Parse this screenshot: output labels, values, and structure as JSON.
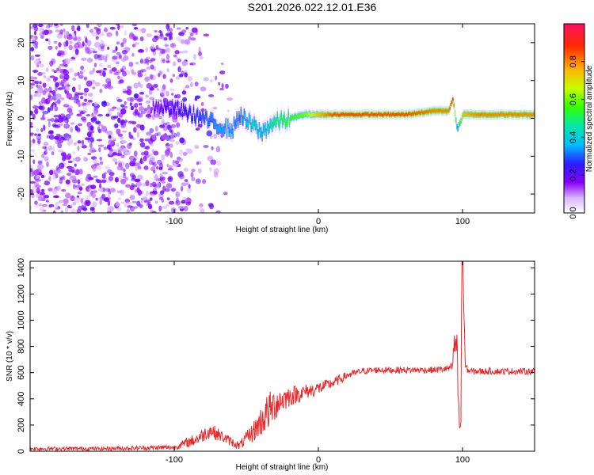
{
  "title": "S201.2026.022.12.01.E36",
  "colors": {
    "snr_line": "#e8282a",
    "frame": "#000000"
  },
  "chart_data": [
    {
      "type": "heatmap",
      "xlabel": "Height of straight line (km)",
      "ylabel": "Frequency (Hz)",
      "xlim": [
        -200,
        150
      ],
      "ylim": [
        -25,
        25
      ],
      "xticks": [
        -100,
        0,
        100
      ],
      "yticks": [
        -20,
        -10,
        0,
        10,
        20
      ],
      "colorbar": {
        "label": "Normalized spectral amplitude",
        "ticks": [
          "0.0",
          "0.2",
          "0.4",
          "0.6",
          "0.8"
        ],
        "range": [
          0,
          1
        ]
      },
      "ridge": {
        "description_points_x": [
          -110,
          -95,
          -80,
          -70,
          -60,
          -55,
          -50,
          -45,
          -40,
          -35,
          -30,
          -20,
          -10,
          0,
          10,
          30,
          60,
          80,
          90,
          93,
          96,
          100,
          110,
          130,
          150
        ],
        "frequency_hz": [
          3,
          2,
          0,
          -2,
          -3,
          1,
          -1,
          -2,
          -4,
          -2,
          -1,
          0,
          1,
          1,
          1,
          1,
          1,
          2,
          2,
          5,
          -3,
          1,
          1,
          1,
          1
        ],
        "amplitude": [
          0.2,
          0.25,
          0.3,
          0.35,
          0.35,
          0.3,
          0.4,
          0.45,
          0.4,
          0.45,
          0.5,
          0.55,
          0.6,
          0.75,
          0.85,
          0.85,
          0.85,
          0.8,
          0.8,
          0.9,
          0.4,
          0.75,
          0.8,
          0.8,
          0.8
        ]
      }
    },
    {
      "type": "line",
      "xlabel": "Height of straight line (km)",
      "ylabel": "SNR (10 * v/v)",
      "xlim": [
        -200,
        150
      ],
      "ylim": [
        0,
        1450
      ],
      "xticks": [
        -100,
        0,
        100
      ],
      "yticks": [
        0,
        200,
        400,
        600,
        800,
        1000,
        1200,
        1400
      ],
      "envelope": {
        "x": [
          -200,
          -150,
          -100,
          -85,
          -75,
          -65,
          -55,
          -45,
          -35,
          -28,
          -20,
          -10,
          0,
          10,
          20,
          30,
          40,
          60,
          80,
          90,
          95,
          98,
          100,
          102,
          105,
          120,
          150
        ],
        "y": [
          20,
          20,
          30,
          90,
          160,
          100,
          40,
          150,
          300,
          380,
          420,
          450,
          480,
          520,
          580,
          610,
          620,
          620,
          620,
          630,
          650,
          300,
          1450,
          640,
          610,
          610,
          610
        ]
      },
      "noise_amplitude": [
        15,
        15,
        20,
        50,
        60,
        40,
        30,
        80,
        150,
        120,
        80,
        60,
        50,
        40,
        30,
        25,
        25,
        25,
        25,
        30,
        40,
        40,
        40,
        30,
        25,
        25,
        25
      ]
    }
  ]
}
